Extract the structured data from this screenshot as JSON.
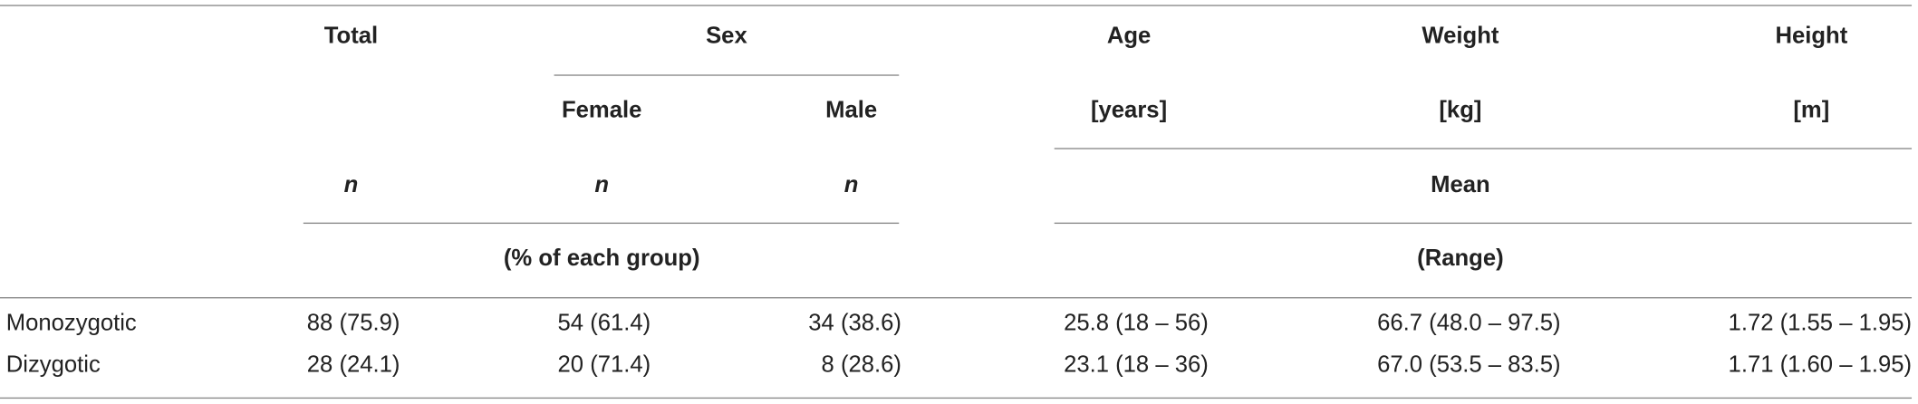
{
  "table": {
    "header": {
      "total": "Total",
      "sex": "Sex",
      "female": "Female",
      "male": "Male",
      "age": "Age",
      "age_unit": "[years]",
      "weight": "Weight",
      "weight_unit": "[kg]",
      "height": "Height",
      "height_unit": "[m]",
      "n_total": "n",
      "n_female": "n",
      "n_male": "n",
      "mean": "Mean",
      "percent": "(% of each group)",
      "range": "(Range)"
    },
    "rows": [
      [
        "Monozygotic",
        "88 (75.9)",
        "54 (61.4)",
        "34 (38.6)",
        "25.8 (18 – 56)",
        "66.7 (48.0 – 97.5)",
        "1.72 (1.55 – 1.95)"
      ],
      [
        "Dizygotic",
        "28 (24.1)",
        "20 (71.4)",
        "8 (28.6)",
        "23.1 (18 – 36)",
        "67.0 (53.5 – 83.5)",
        "1.71 (1.60 – 1.95)"
      ]
    ]
  }
}
